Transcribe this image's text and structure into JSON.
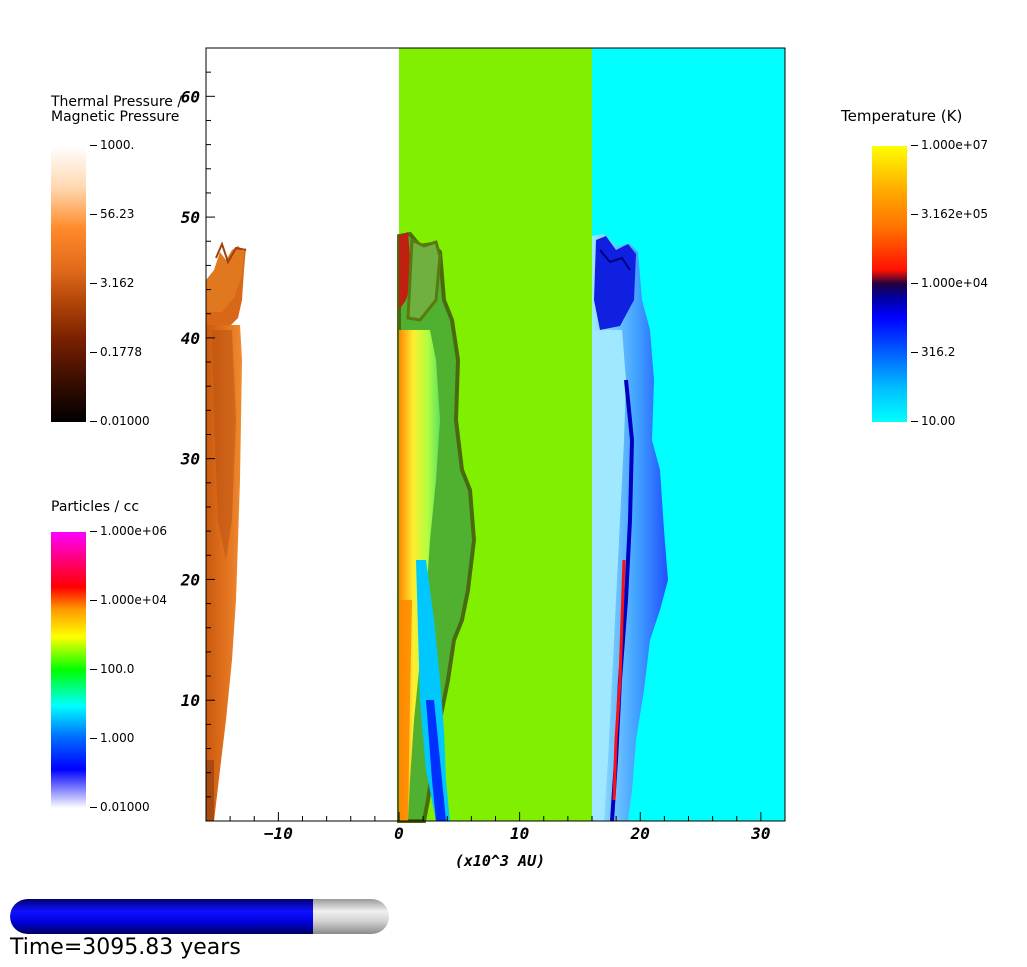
{
  "chart_data": {
    "type": "heatmap",
    "title": "",
    "xlabel": "(x10^3 AU)",
    "ylabel": "",
    "xlim": [
      -16,
      32
    ],
    "ylim": [
      0,
      64
    ],
    "x_ticks": [
      -10,
      0,
      10,
      20,
      30
    ],
    "y_ticks": [
      10,
      20,
      30,
      40,
      50,
      60
    ],
    "panels": [
      {
        "name": "Thermal Pressure / Magnetic Pressure",
        "x_range": [
          -16,
          0
        ]
      },
      {
        "name": "Particles / cc",
        "x_range": [
          0,
          16
        ]
      },
      {
        "name": "Temperature (K)",
        "x_range": [
          16,
          32
        ]
      }
    ],
    "colorbars": [
      {
        "title": "Thermal Pressure /\nMagnetic Pressure",
        "ticks": [
          "1000.",
          "56.23",
          "3.162",
          "0.1778",
          "0.01000"
        ],
        "colors": [
          "#ffffff",
          "#ff8a2a",
          "#b84a0a",
          "#3a0e00",
          "#000000"
        ]
      },
      {
        "title": "Particles / cc",
        "ticks": [
          "1.000e+06",
          "1.000e+04",
          "100.0",
          "1.000",
          "0.01000"
        ],
        "colors": [
          "#ff00ff",
          "#ff0000",
          "#ff9900",
          "#ffff00",
          "#00ff00",
          "#00ffff",
          "#0070ff",
          "#0000ff",
          "#ffffff"
        ]
      },
      {
        "title": "Temperature (K)",
        "ticks": [
          "1.000e+07",
          "3.162e+05",
          "1.000e+04",
          "316.2",
          "10.00"
        ],
        "colors": [
          "#ffff00",
          "#ff8000",
          "#ff1000",
          "#000060",
          "#0000ff",
          "#0080ff",
          "#00ffff"
        ]
      }
    ]
  },
  "time": {
    "label": "Time=3095.83 years",
    "progress": 0.8
  },
  "colors": {
    "progress_fill": "#0000dd",
    "progress_track": "#d8d8d8",
    "density_background": "#80f000",
    "temperature_background": "#00ffff"
  }
}
